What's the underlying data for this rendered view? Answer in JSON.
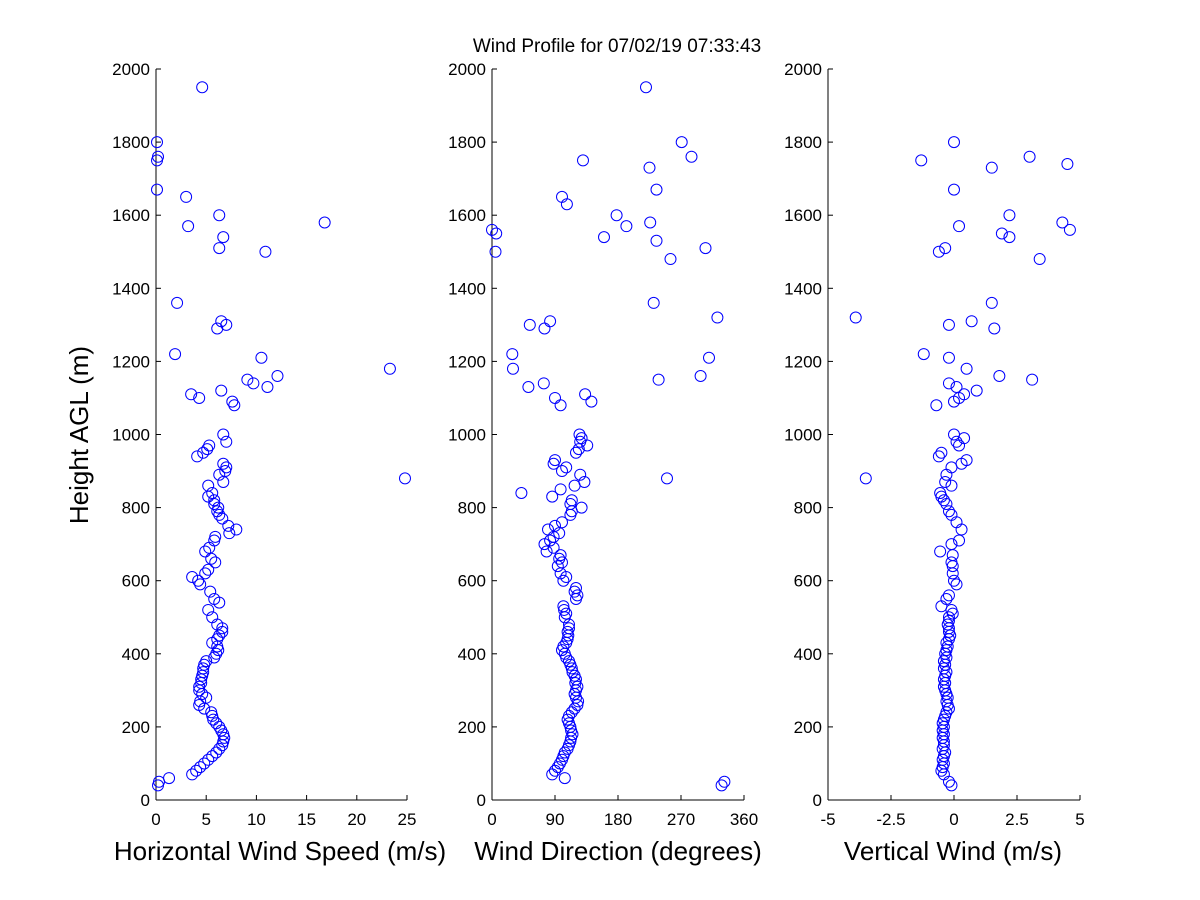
{
  "figure": {
    "title": "Wind Profile for  07/02/19 07:33:43",
    "ylabel": "Height AGL (m)"
  },
  "chart_data": [
    {
      "type": "scatter",
      "marker": "open-circle",
      "color": "#0000ff",
      "xlabel": "Horizontal Wind Speed (m/s)",
      "ylabel": "Height AGL (m)",
      "xlim": [
        0,
        25
      ],
      "ylim": [
        0,
        2000
      ],
      "xticks": [
        "0",
        "5",
        "10",
        "15",
        "20",
        "25"
      ],
      "yticks": [
        "0",
        "200",
        "400",
        "600",
        "800",
        "1000",
        "1200",
        "1400",
        "1600",
        "1800",
        "2000"
      ],
      "points": [
        [
          0.2,
          40
        ],
        [
          0.3,
          50
        ],
        [
          1.3,
          60
        ],
        [
          3.6,
          70
        ],
        [
          4.0,
          80
        ],
        [
          4.4,
          90
        ],
        [
          4.8,
          100
        ],
        [
          5.2,
          110
        ],
        [
          5.6,
          120
        ],
        [
          6.0,
          130
        ],
        [
          6.3,
          140
        ],
        [
          6.6,
          150
        ],
        [
          6.7,
          160
        ],
        [
          6.8,
          170
        ],
        [
          6.7,
          180
        ],
        [
          6.5,
          190
        ],
        [
          6.3,
          200
        ],
        [
          6.0,
          210
        ],
        [
          5.7,
          220
        ],
        [
          5.6,
          230
        ],
        [
          5.5,
          240
        ],
        [
          4.8,
          250
        ],
        [
          4.3,
          260
        ],
        [
          4.4,
          270
        ],
        [
          5.0,
          280
        ],
        [
          4.6,
          290
        ],
        [
          4.3,
          300
        ],
        [
          4.3,
          310
        ],
        [
          4.5,
          320
        ],
        [
          4.5,
          330
        ],
        [
          4.6,
          340
        ],
        [
          4.7,
          350
        ],
        [
          4.7,
          360
        ],
        [
          4.8,
          370
        ],
        [
          5.0,
          380
        ],
        [
          5.8,
          390
        ],
        [
          6.0,
          400
        ],
        [
          6.2,
          410
        ],
        [
          6.1,
          420
        ],
        [
          5.6,
          430
        ],
        [
          6.1,
          440
        ],
        [
          6.3,
          450
        ],
        [
          6.6,
          460
        ],
        [
          6.6,
          470
        ],
        [
          6.1,
          480
        ],
        [
          5.6,
          500
        ],
        [
          5.2,
          520
        ],
        [
          6.3,
          540
        ],
        [
          5.8,
          550
        ],
        [
          5.4,
          570
        ],
        [
          4.4,
          590
        ],
        [
          4.2,
          600
        ],
        [
          3.6,
          610
        ],
        [
          4.9,
          620
        ],
        [
          5.2,
          630
        ],
        [
          5.9,
          650
        ],
        [
          5.5,
          660
        ],
        [
          4.9,
          680
        ],
        [
          5.3,
          690
        ],
        [
          5.8,
          710
        ],
        [
          5.9,
          720
        ],
        [
          7.3,
          730
        ],
        [
          8.0,
          740
        ],
        [
          7.2,
          750
        ],
        [
          6.6,
          770
        ],
        [
          6.3,
          780
        ],
        [
          6.1,
          790
        ],
        [
          6.2,
          800
        ],
        [
          5.8,
          810
        ],
        [
          5.8,
          820
        ],
        [
          5.2,
          830
        ],
        [
          5.6,
          840
        ],
        [
          5.2,
          860
        ],
        [
          6.7,
          870
        ],
        [
          6.3,
          890
        ],
        [
          6.9,
          900
        ],
        [
          7.0,
          910
        ],
        [
          6.7,
          920
        ],
        [
          24.8,
          880
        ],
        [
          4.1,
          940
        ],
        [
          4.7,
          950
        ],
        [
          5.1,
          960
        ],
        [
          5.3,
          970
        ],
        [
          7.0,
          980
        ],
        [
          6.7,
          1000
        ],
        [
          7.8,
          1080
        ],
        [
          7.6,
          1090
        ],
        [
          3.5,
          1110
        ],
        [
          4.3,
          1100
        ],
        [
          6.5,
          1120
        ],
        [
          11.1,
          1130
        ],
        [
          9.7,
          1140
        ],
        [
          9.1,
          1150
        ],
        [
          12.1,
          1160
        ],
        [
          23.3,
          1180
        ],
        [
          10.5,
          1210
        ],
        [
          1.9,
          1220
        ],
        [
          6.1,
          1290
        ],
        [
          7.0,
          1300
        ],
        [
          6.5,
          1310
        ],
        [
          2.1,
          1360
        ],
        [
          10.9,
          1500
        ],
        [
          6.3,
          1510
        ],
        [
          6.7,
          1540
        ],
        [
          3.2,
          1570
        ],
        [
          16.8,
          1580
        ],
        [
          6.3,
          1600
        ],
        [
          3.0,
          1650
        ],
        [
          0.1,
          1670
        ],
        [
          0.1,
          1750
        ],
        [
          0.2,
          1760
        ],
        [
          0.1,
          1800
        ],
        [
          4.6,
          1950
        ]
      ]
    },
    {
      "type": "scatter",
      "marker": "open-circle",
      "color": "#0000ff",
      "xlabel": "Wind Direction (degrees)",
      "ylabel": "Height AGL (m)",
      "xlim": [
        0,
        360
      ],
      "ylim": [
        0,
        2000
      ],
      "xticks": [
        "0",
        "90",
        "180",
        "270",
        "360"
      ],
      "yticks": [
        "0",
        "200",
        "400",
        "600",
        "800",
        "1000",
        "1200",
        "1400",
        "1600",
        "1800",
        "2000"
      ],
      "points": [
        [
          328,
          40
        ],
        [
          332,
          50
        ],
        [
          104,
          60
        ],
        [
          86,
          70
        ],
        [
          90,
          80
        ],
        [
          94,
          90
        ],
        [
          97,
          100
        ],
        [
          100,
          110
        ],
        [
          102,
          120
        ],
        [
          104,
          130
        ],
        [
          108,
          140
        ],
        [
          110,
          150
        ],
        [
          112,
          160
        ],
        [
          113,
          170
        ],
        [
          115,
          180
        ],
        [
          113,
          190
        ],
        [
          112,
          200
        ],
        [
          110,
          210
        ],
        [
          108,
          220
        ],
        [
          110,
          230
        ],
        [
          114,
          240
        ],
        [
          118,
          250
        ],
        [
          122,
          260
        ],
        [
          123,
          270
        ],
        [
          120,
          280
        ],
        [
          118,
          290
        ],
        [
          120,
          300
        ],
        [
          122,
          310
        ],
        [
          119,
          320
        ],
        [
          120,
          330
        ],
        [
          118,
          340
        ],
        [
          115,
          350
        ],
        [
          114,
          360
        ],
        [
          112,
          370
        ],
        [
          110,
          380
        ],
        [
          106,
          390
        ],
        [
          104,
          400
        ],
        [
          100,
          410
        ],
        [
          102,
          420
        ],
        [
          106,
          430
        ],
        [
          108,
          440
        ],
        [
          109,
          450
        ],
        [
          108,
          460
        ],
        [
          110,
          470
        ],
        [
          110,
          480
        ],
        [
          104,
          500
        ],
        [
          106,
          510
        ],
        [
          103,
          520
        ],
        [
          102,
          530
        ],
        [
          120,
          550
        ],
        [
          122,
          560
        ],
        [
          118,
          570
        ],
        [
          120,
          580
        ],
        [
          102,
          600
        ],
        [
          106,
          610
        ],
        [
          98,
          620
        ],
        [
          94,
          640
        ],
        [
          100,
          650
        ],
        [
          96,
          660
        ],
        [
          98,
          670
        ],
        [
          78,
          680
        ],
        [
          88,
          690
        ],
        [
          75,
          700
        ],
        [
          83,
          710
        ],
        [
          88,
          720
        ],
        [
          96,
          730
        ],
        [
          80,
          740
        ],
        [
          90,
          750
        ],
        [
          100,
          760
        ],
        [
          112,
          780
        ],
        [
          114,
          790
        ],
        [
          128,
          800
        ],
        [
          112,
          810
        ],
        [
          114,
          820
        ],
        [
          86,
          830
        ],
        [
          42,
          840
        ],
        [
          98,
          850
        ],
        [
          118,
          860
        ],
        [
          132,
          870
        ],
        [
          126,
          890
        ],
        [
          250,
          880
        ],
        [
          100,
          900
        ],
        [
          106,
          910
        ],
        [
          88,
          920
        ],
        [
          90,
          930
        ],
        [
          120,
          950
        ],
        [
          124,
          960
        ],
        [
          136,
          970
        ],
        [
          126,
          980
        ],
        [
          128,
          990
        ],
        [
          125,
          1000
        ],
        [
          98,
          1080
        ],
        [
          142,
          1090
        ],
        [
          90,
          1100
        ],
        [
          133,
          1110
        ],
        [
          52,
          1130
        ],
        [
          74,
          1140
        ],
        [
          238,
          1150
        ],
        [
          298,
          1160
        ],
        [
          30,
          1180
        ],
        [
          310,
          1210
        ],
        [
          29,
          1220
        ],
        [
          75,
          1290
        ],
        [
          54,
          1300
        ],
        [
          83,
          1310
        ],
        [
          322,
          1320
        ],
        [
          231,
          1360
        ],
        [
          5,
          1500
        ],
        [
          305,
          1510
        ],
        [
          255,
          1480
        ],
        [
          235,
          1530
        ],
        [
          160,
          1540
        ],
        [
          192,
          1570
        ],
        [
          0,
          1560
        ],
        [
          6,
          1550
        ],
        [
          226,
          1580
        ],
        [
          178,
          1600
        ],
        [
          107,
          1630
        ],
        [
          100,
          1650
        ],
        [
          235,
          1670
        ],
        [
          225,
          1730
        ],
        [
          130,
          1750
        ],
        [
          285,
          1760
        ],
        [
          271,
          1800
        ],
        [
          220,
          1950
        ]
      ]
    },
    {
      "type": "scatter",
      "marker": "open-circle",
      "color": "#0000ff",
      "xlabel": "Vertical Wind (m/s)",
      "ylabel": "Height AGL (m)",
      "xlim": [
        -5,
        5
      ],
      "ylim": [
        0,
        2000
      ],
      "xticks": [
        "-5",
        "-2.5",
        "0",
        "2.5",
        "5"
      ],
      "yticks": [
        "0",
        "200",
        "400",
        "600",
        "800",
        "1000",
        "1200",
        "1400",
        "1600",
        "1800",
        "2000"
      ],
      "points": [
        [
          -0.1,
          40
        ],
        [
          -0.2,
          50
        ],
        [
          -0.4,
          70
        ],
        [
          -0.5,
          80
        ],
        [
          -0.45,
          90
        ],
        [
          -0.4,
          100
        ],
        [
          -0.45,
          110
        ],
        [
          -0.4,
          120
        ],
        [
          -0.35,
          130
        ],
        [
          -0.45,
          140
        ],
        [
          -0.4,
          150
        ],
        [
          -0.4,
          160
        ],
        [
          -0.45,
          170
        ],
        [
          -0.4,
          180
        ],
        [
          -0.45,
          190
        ],
        [
          -0.4,
          200
        ],
        [
          -0.45,
          210
        ],
        [
          -0.4,
          220
        ],
        [
          -0.35,
          230
        ],
        [
          -0.3,
          240
        ],
        [
          -0.2,
          250
        ],
        [
          -0.25,
          260
        ],
        [
          -0.3,
          270
        ],
        [
          -0.25,
          280
        ],
        [
          -0.3,
          290
        ],
        [
          -0.35,
          300
        ],
        [
          -0.4,
          310
        ],
        [
          -0.35,
          320
        ],
        [
          -0.4,
          330
        ],
        [
          -0.35,
          340
        ],
        [
          -0.3,
          350
        ],
        [
          -0.4,
          360
        ],
        [
          -0.35,
          370
        ],
        [
          -0.4,
          380
        ],
        [
          -0.3,
          390
        ],
        [
          -0.35,
          400
        ],
        [
          -0.3,
          410
        ],
        [
          -0.25,
          420
        ],
        [
          -0.3,
          430
        ],
        [
          -0.2,
          440
        ],
        [
          -0.15,
          450
        ],
        [
          -0.2,
          460
        ],
        [
          -0.2,
          470
        ],
        [
          -0.25,
          480
        ],
        [
          -0.2,
          490
        ],
        [
          -0.2,
          500
        ],
        [
          -0.05,
          510
        ],
        [
          -0.1,
          520
        ],
        [
          -0.5,
          530
        ],
        [
          -0.3,
          550
        ],
        [
          -0.2,
          560
        ],
        [
          0.1,
          590
        ],
        [
          0.0,
          600
        ],
        [
          -0.05,
          620
        ],
        [
          -0.05,
          640
        ],
        [
          -0.1,
          650
        ],
        [
          -0.05,
          670
        ],
        [
          -0.55,
          680
        ],
        [
          -0.1,
          700
        ],
        [
          0.2,
          710
        ],
        [
          0.3,
          740
        ],
        [
          0.1,
          760
        ],
        [
          -0.1,
          780
        ],
        [
          -0.2,
          790
        ],
        [
          -0.3,
          810
        ],
        [
          -0.4,
          820
        ],
        [
          -0.5,
          830
        ],
        [
          -0.55,
          840
        ],
        [
          -0.1,
          860
        ],
        [
          -0.35,
          870
        ],
        [
          -3.5,
          880
        ],
        [
          -0.3,
          890
        ],
        [
          -0.1,
          910
        ],
        [
          0.3,
          920
        ],
        [
          0.5,
          930
        ],
        [
          -0.6,
          940
        ],
        [
          -0.5,
          950
        ],
        [
          0.2,
          970
        ],
        [
          0.1,
          980
        ],
        [
          0.4,
          990
        ],
        [
          0.0,
          1000
        ],
        [
          -0.7,
          1080
        ],
        [
          0.0,
          1090
        ],
        [
          0.2,
          1100
        ],
        [
          0.4,
          1110
        ],
        [
          0.9,
          1120
        ],
        [
          0.1,
          1130
        ],
        [
          -0.2,
          1140
        ],
        [
          1.8,
          1160
        ],
        [
          0.5,
          1180
        ],
        [
          -0.2,
          1210
        ],
        [
          -1.2,
          1220
        ],
        [
          1.6,
          1290
        ],
        [
          -0.2,
          1300
        ],
        [
          0.7,
          1310
        ],
        [
          -3.9,
          1320
        ],
        [
          1.5,
          1360
        ],
        [
          3.4,
          1480
        ],
        [
          -0.6,
          1500
        ],
        [
          -0.35,
          1510
        ],
        [
          2.2,
          1540
        ],
        [
          1.9,
          1550
        ],
        [
          4.6,
          1560
        ],
        [
          0.2,
          1570
        ],
        [
          4.3,
          1580
        ],
        [
          2.2,
          1600
        ],
        [
          0.0,
          1670
        ],
        [
          1.5,
          1730
        ],
        [
          4.5,
          1740
        ],
        [
          -1.3,
          1750
        ],
        [
          3.0,
          1760
        ],
        [
          0.0,
          1800
        ],
        [
          3.1,
          1150
        ]
      ]
    }
  ]
}
